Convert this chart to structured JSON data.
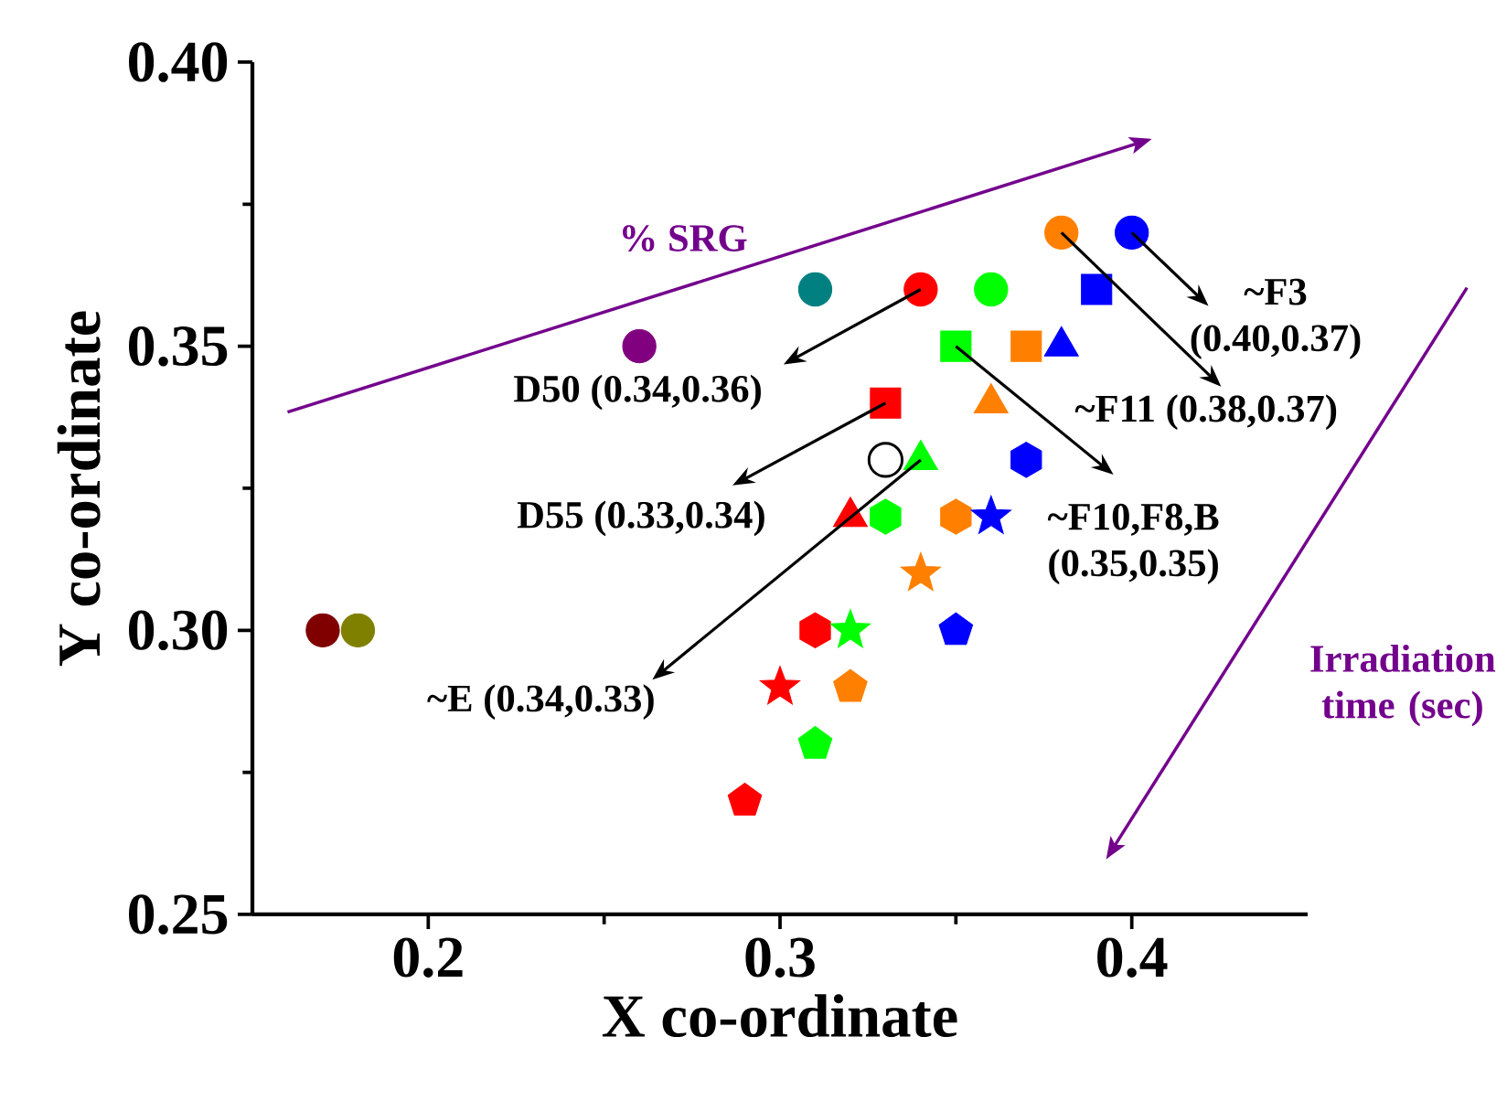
{
  "chart_data": {
    "type": "scatter",
    "xlabel": "X co-ordinate",
    "ylabel": "Y co-ordinate",
    "xlim": [
      0.15,
      0.45
    ],
    "ylim": [
      0.25,
      0.4
    ],
    "xticks": [
      0.2,
      0.3,
      0.4
    ],
    "yticks": [
      {
        "value": 0.25,
        "label": "0.25"
      },
      {
        "value": 0.3,
        "label": "0.30"
      },
      {
        "value": 0.35,
        "label": "0.35"
      },
      {
        "value": 0.4,
        "label": "0.40"
      }
    ],
    "series": [
      {
        "marker": "circle",
        "colors": [
          "#800000",
          "#808000",
          "#800080",
          "#008080",
          "#ff0000",
          "#00ff00",
          "#ff8000",
          "#0000ff"
        ],
        "x": [
          0.17,
          0.18,
          0.26,
          0.31,
          0.34,
          0.36,
          0.38,
          0.4
        ],
        "values": [
          0.3,
          0.3,
          0.35,
          0.36,
          0.36,
          0.36,
          0.37,
          0.37
        ]
      },
      {
        "marker": "square",
        "colors": [
          "#0000ff",
          "#00ff00",
          "#ff8000",
          "#ff0000"
        ],
        "x": [
          0.39,
          0.35,
          0.37,
          0.33
        ],
        "values": [
          0.36,
          0.35,
          0.35,
          0.34
        ]
      },
      {
        "marker": "triangle",
        "colors": [
          "#0000ff",
          "#ff8000",
          "#00ff00",
          "#ff0000"
        ],
        "x": [
          0.38,
          0.36,
          0.34,
          0.32
        ],
        "values": [
          0.35,
          0.34,
          0.33,
          0.32
        ]
      },
      {
        "colors": [
          "#0000ff",
          "#00ff00",
          "#ff8000",
          "#ff0000"
        ],
        "x": [
          0.37,
          0.33,
          0.35,
          0.31
        ],
        "values": [
          0.33,
          0.32,
          0.32,
          0.3
        ]
      },
      {
        "marker": "star",
        "colors": [
          "#0000ff",
          "#ff8000",
          "#00ff00",
          "#ff0000"
        ],
        "x": [
          0.36,
          0.34,
          0.32,
          0.3
        ],
        "values": [
          0.32,
          0.31,
          0.3,
          0.29
        ]
      },
      {
        "colors": [
          "#0000ff",
          "#ff8000",
          "#00ff00",
          "#ff0000"
        ],
        "x": [
          0.35,
          0.32,
          0.31,
          0.29
        ],
        "values": [
          0.3,
          0.29,
          0.28,
          0.27
        ]
      },
      {
        "marker": "open circle",
        "color": "#000000",
        "x": [
          0.33
        ],
        "values": [
          0.33
        ]
      }
    ],
    "annotations": [
      "% SRG",
      {
        "text": "D50 (0.34,0.36)",
        "x": 0.34,
        "y": 0.36
      },
      {
        "text": "D55 (0.33,0.34)",
        "x": 0.33,
        "y": 0.34
      },
      {
        "text": "~E (0.34,0.33)",
        "x": 0.34,
        "y": 0.33
      },
      {
        "text": "~F10,F8,B (0.35,0.35)",
        "x": 0.35,
        "y": 0.35
      },
      {
        "text": "~F11 (0.38,0.37)",
        "x": 0.38,
        "y": 0.37
      },
      {
        "text": "~F3 (0.40,0.37)",
        "x": 0.4,
        "y": 0.37
      },
      "Irradiation time (sec)"
    ]
  }
}
